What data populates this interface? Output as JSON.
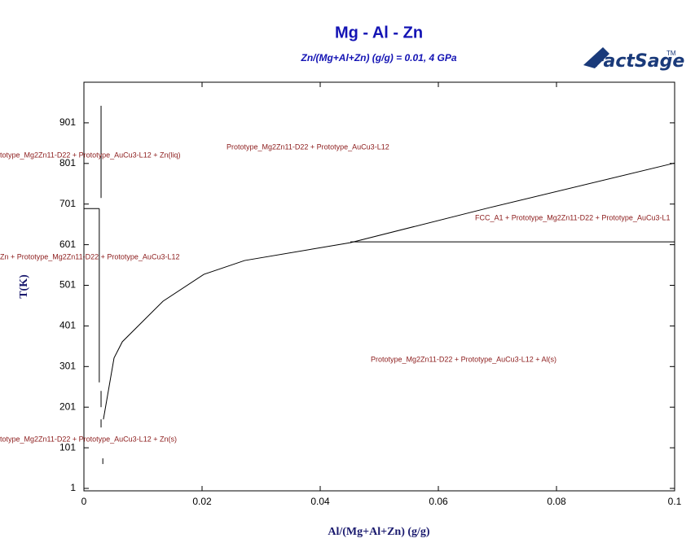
{
  "chart_data": {
    "type": "line",
    "title": "Mg - Al - Zn",
    "subtitle": "Zn/(Mg+Al+Zn) (g/g)  = 0.01,  4 GPa",
    "logo": "FactSage",
    "logo_mark": "TM",
    "xlabel": "Al/(Mg+Al+Zn) (g/g)",
    "ylabel": "T(K)",
    "xlim": [
      0,
      0.1
    ],
    "ylim": [
      -5,
      1001
    ],
    "xticks": [
      0,
      0.02,
      0.04,
      0.06,
      0.08,
      0.1
    ],
    "yticks": [
      1,
      101,
      201,
      301,
      401,
      501,
      601,
      701,
      801,
      901
    ],
    "color": "#000000",
    "lines": [
      {
        "x": [
          0.0033,
          0.0051,
          0.0065,
          0.0134,
          0.0203,
          0.0272,
          0.0451,
          0.0686,
          0.1
        ],
        "y": [
          171,
          322,
          362,
          462,
          528,
          562,
          606,
          692,
          802
        ]
      },
      {
        "x": [
          0.0451,
          0.1
        ],
        "y": [
          608,
          608
        ]
      },
      {
        "x": [
          0,
          0.0026
        ],
        "y": [
          690,
          690
        ]
      },
      {
        "x": [
          0.0026,
          0.0026
        ],
        "y": [
          690,
          262
        ]
      },
      {
        "x": [
          0.0029,
          0.0029
        ],
        "y": [
          943,
          716
        ]
      },
      {
        "x": [
          0.0029,
          0.0029
        ],
        "y": [
          241,
          201
        ]
      },
      {
        "x": [
          0.0029,
          0.0029
        ],
        "y": [
          171,
          151
        ]
      },
      {
        "x": [
          0.0032,
          0.0032
        ],
        "y": [
          75,
          61
        ]
      }
    ],
    "region_labels": [
      "Prototype_Mg2Zn11-D22 + Prototype_AuCu3-L12",
      "totype_Mg2Zn11-D22 + Prototype_AuCu3-L12 + Zn(liq)",
      "FCC_A1 + Prototype_Mg2Zn11-D22 + Prototype_AuCu3-L1",
      "Zn + Prototype_Mg2Zn11-D22 + Prototype_AuCu3-L12",
      "Prototype_Mg2Zn11-D22 + Prototype_AuCu3-L12 + Al(s)",
      "totype_Mg2Zn11-D22 + Prototype_AuCu3-L12 + Zn(s)"
    ]
  }
}
